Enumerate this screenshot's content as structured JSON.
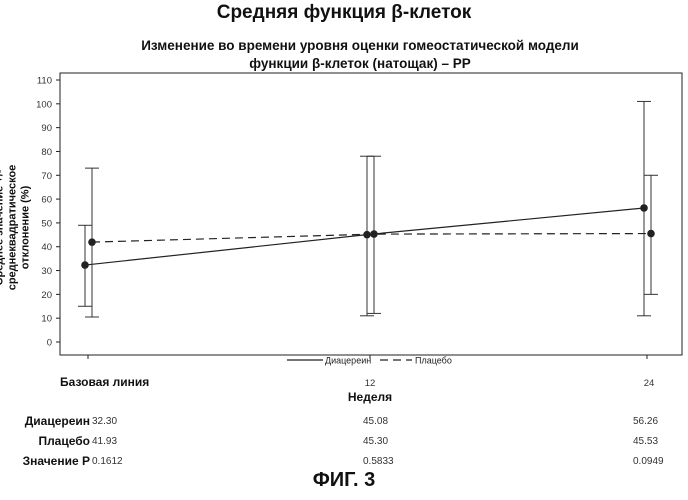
{
  "title": "Средняя функция β-клеток",
  "chart_data": {
    "type": "line",
    "subtitle_line1": "Изменение во времени уровня оценки гомеостатической модели",
    "subtitle_line2": "функции β-клеток (натощак) – PP",
    "ylabel_line1": "Среднее значение +/- среднеквадратическое",
    "ylabel_line2": "отклонение (%)",
    "xlabel": "Неделя",
    "x_ticks": [
      "Базовая линия",
      "12",
      "24"
    ],
    "y_ticks": [
      "0",
      "10",
      "20",
      "30",
      "40",
      "50",
      "60",
      "70",
      "80",
      "90",
      "100",
      "110"
    ],
    "ylim": [
      0,
      110
    ],
    "series": [
      {
        "name": "Диацереин",
        "line_style": "solid",
        "mean": [
          32.3,
          45.08,
          56.26
        ],
        "low": [
          15,
          11,
          11
        ],
        "high": [
          49,
          78,
          101
        ]
      },
      {
        "name": "Плацебо",
        "line_style": "dashed",
        "mean": [
          41.93,
          45.3,
          45.53
        ],
        "low": [
          10.5,
          12,
          20
        ],
        "high": [
          73,
          78,
          70
        ]
      }
    ],
    "legend_position": "bottom-center"
  },
  "table": {
    "rows": [
      {
        "label": "Диацереин",
        "values": [
          "32.30",
          "45.08",
          "56.26"
        ]
      },
      {
        "label": "Плацебо",
        "values": [
          "41.93",
          "45.30",
          "45.53"
        ]
      },
      {
        "label": "Значение P",
        "values": [
          "0.1612",
          "0.5833",
          "0.0949"
        ]
      }
    ]
  },
  "figure_label": "ФИГ. 3"
}
